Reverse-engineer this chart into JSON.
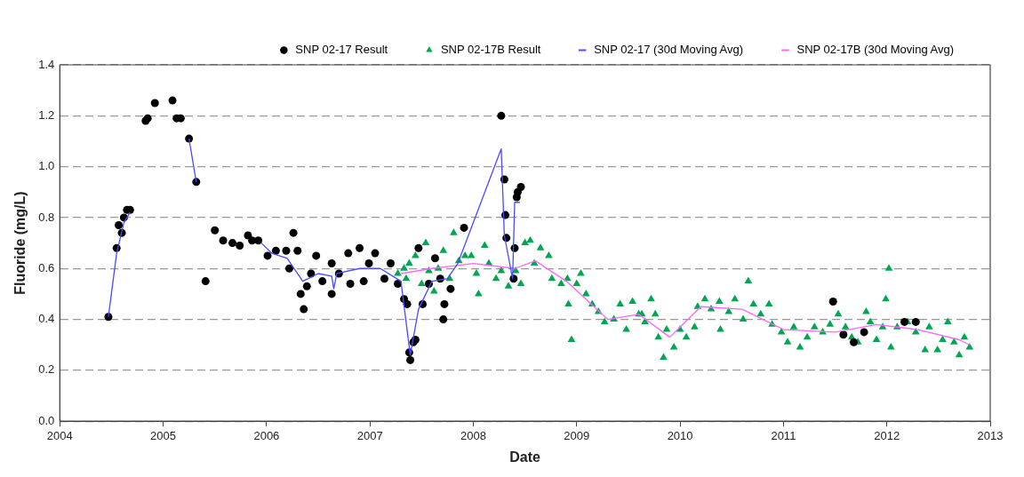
{
  "chart_data": {
    "type": "scatter",
    "xlabel": "Date",
    "ylabel": "Fluoride (mg/L)",
    "xlim": [
      2004,
      2013
    ],
    "xticks": [
      2004,
      2005,
      2006,
      2007,
      2008,
      2009,
      2010,
      2011,
      2012,
      2013
    ],
    "ylim": [
      0,
      1.4
    ],
    "yticks": [
      {
        "value": 0,
        "label": "0.0"
      },
      0.2,
      0.4,
      0.6,
      0.8,
      {
        "value": 1,
        "label": "1.0"
      },
      1.2,
      1.4
    ],
    "grid": "y",
    "legend": "top",
    "series": [
      {
        "name": "SNP 02-17 Result",
        "marker": "circle",
        "color": "#000000",
        "x": [
          2004.47,
          2004.55,
          2004.57,
          2004.6,
          2004.62,
          2004.65,
          2004.68,
          2004.83,
          2004.85,
          2004.92,
          2005.09,
          2005.13,
          2005.17,
          2005.25,
          2005.32,
          2005.41,
          2005.5,
          2005.58,
          2005.67,
          2005.74,
          2005.82,
          2005.86,
          2005.92,
          2006.01,
          2006.09,
          2006.19,
          2006.22,
          2006.26,
          2006.3,
          2006.33,
          2006.36,
          2006.39,
          2006.43,
          2006.48,
          2006.54,
          2006.63,
          2006.63,
          2006.7,
          2006.79,
          2006.81,
          2006.9,
          2006.94,
          2006.99,
          2007.05,
          2007.14,
          2007.2,
          2007.27,
          2007.33,
          2007.36,
          2007.38,
          2007.39,
          2007.42,
          2007.44,
          2007.47,
          2007.51,
          2007.57,
          2007.63,
          2007.68,
          2007.71,
          2007.72,
          2007.78,
          2007.91,
          2008.27,
          2008.3,
          2008.31,
          2008.32,
          2008.39,
          2008.4,
          2008.42,
          2008.43,
          2008.46,
          2011.48,
          2011.58,
          2011.68,
          2011.78,
          2012.17,
          2012.28
        ],
        "values": [
          0.41,
          0.68,
          0.77,
          0.74,
          0.8,
          0.83,
          0.83,
          1.18,
          1.19,
          1.25,
          1.26,
          1.19,
          1.19,
          1.11,
          0.94,
          0.55,
          0.75,
          0.71,
          0.7,
          0.69,
          0.73,
          0.71,
          0.71,
          0.65,
          0.67,
          0.67,
          0.6,
          0.74,
          0.67,
          0.5,
          0.44,
          0.53,
          0.58,
          0.65,
          0.55,
          0.62,
          0.5,
          0.58,
          0.66,
          0.54,
          0.68,
          0.55,
          0.62,
          0.66,
          0.56,
          0.62,
          0.54,
          0.48,
          0.46,
          0.27,
          0.24,
          0.31,
          0.32,
          0.68,
          0.46,
          0.54,
          0.64,
          0.56,
          0.4,
          0.46,
          0.52,
          0.76,
          1.2,
          0.95,
          0.81,
          0.72,
          0.56,
          0.68,
          0.88,
          0.9,
          0.92,
          0.47,
          0.34,
          0.31,
          0.35,
          0.39,
          0.39
        ]
      },
      {
        "name": "SNP 02-17B Result",
        "marker": "triangle",
        "color": "#00a651",
        "x": [
          2007.27,
          2007.33,
          2007.35,
          2007.38,
          2007.44,
          2007.5,
          2007.54,
          2007.57,
          2007.62,
          2007.66,
          2007.71,
          2007.77,
          2007.81,
          2007.86,
          2007.92,
          2007.98,
          2008.03,
          2008.05,
          2008.11,
          2008.15,
          2008.22,
          2008.27,
          2008.34,
          2008.41,
          2008.46,
          2008.5,
          2008.55,
          2008.59,
          2008.65,
          2008.73,
          2008.76,
          2008.85,
          2008.91,
          2008.92,
          2008.95,
          2009,
          2009.04,
          2009.09,
          2009.15,
          2009.21,
          2009.27,
          2009.36,
          2009.42,
          2009.48,
          2009.54,
          2009.6,
          2009.63,
          2009.66,
          2009.72,
          2009.76,
          2009.79,
          2009.84,
          2009.87,
          2009.94,
          2010,
          2010.06,
          2010.14,
          2010.17,
          2010.24,
          2010.3,
          2010.38,
          2010.39,
          2010.47,
          2010.53,
          2010.61,
          2010.66,
          2010.71,
          2010.78,
          2010.86,
          2010.89,
          2010.98,
          2011.04,
          2011.1,
          2011.16,
          2011.23,
          2011.3,
          2011.38,
          2011.45,
          2011.53,
          2011.6,
          2011.66,
          2011.72,
          2011.8,
          2011.84,
          2011.9,
          2011.96,
          2011.99,
          2012.02,
          2012.04,
          2012.1,
          2012.2,
          2012.28,
          2012.37,
          2012.41,
          2012.49,
          2012.54,
          2012.59,
          2012.65,
          2012.7,
          2012.75,
          2012.8
        ],
        "values": [
          0.58,
          0.6,
          0.56,
          0.62,
          0.65,
          0.54,
          0.7,
          0.59,
          0.51,
          0.6,
          0.67,
          0.56,
          0.74,
          0.63,
          0.65,
          0.65,
          0.58,
          0.5,
          0.69,
          0.62,
          0.56,
          0.59,
          0.53,
          0.59,
          0.54,
          0.7,
          0.71,
          0.62,
          0.68,
          0.65,
          0.56,
          0.54,
          0.56,
          0.46,
          0.32,
          0.54,
          0.58,
          0.5,
          0.46,
          0.43,
          0.39,
          0.4,
          0.46,
          0.36,
          0.47,
          0.42,
          0.42,
          0.39,
          0.48,
          0.42,
          0.33,
          0.25,
          0.36,
          0.29,
          0.36,
          0.33,
          0.37,
          0.45,
          0.48,
          0.44,
          0.47,
          0.36,
          0.43,
          0.48,
          0.4,
          0.55,
          0.46,
          0.42,
          0.46,
          0.38,
          0.35,
          0.31,
          0.37,
          0.29,
          0.33,
          0.37,
          0.35,
          0.38,
          0.42,
          0.37,
          0.33,
          0.31,
          0.43,
          0.39,
          0.32,
          0.37,
          0.48,
          0.6,
          0.29,
          0.37,
          0.39,
          0.35,
          0.28,
          0.37,
          0.28,
          0.32,
          0.39,
          0.31,
          0.26,
          0.33,
          0.29
        ]
      },
      {
        "name": "SNP 02-17 (30d Moving Avg)",
        "type": "line",
        "marker": "none",
        "line_style": "solid",
        "color": "#4a4aff",
        "x": [
          2004.47,
          2004.55,
          2004.62,
          2004.68,
          2004.75,
          2005.25,
          2005.32,
          2005.4,
          2005.95,
          2006.05,
          2006.2,
          2006.35,
          2006.5,
          2006.63,
          2006.65,
          2006.68,
          2006.9,
          2007.1,
          2007.3,
          2007.39,
          2007.47,
          2007.6,
          2007.75,
          2007.85,
          2008.27,
          2008.3,
          2008.38,
          2008.4,
          2008.45
        ],
        "values": [
          0.41,
          0.66,
          0.78,
          0.82,
          null,
          1.11,
          0.94,
          null,
          0.7,
          0.66,
          0.64,
          0.55,
          0.58,
          0.57,
          0.52,
          0.58,
          0.6,
          0.6,
          0.55,
          0.26,
          0.44,
          0.55,
          0.56,
          0.62,
          1.07,
          0.73,
          0.56,
          0.86,
          0.86
        ]
      },
      {
        "name": "SNP 02-17B (30d Moving Avg)",
        "type": "line",
        "marker": "none",
        "line_style": "solid",
        "color": "#ff66ff",
        "x": [
          2007.3,
          2007.6,
          2008,
          2008.4,
          2008.6,
          2008.9,
          2009.3,
          2009.6,
          2009.9,
          2010.2,
          2010.6,
          2011,
          2011.5,
          2011.9,
          2012.3,
          2012.7,
          2012.8
        ],
        "values": [
          0.58,
          0.6,
          0.62,
          0.6,
          0.63,
          0.55,
          0.4,
          0.42,
          0.33,
          0.45,
          0.44,
          0.36,
          0.35,
          0.38,
          0.36,
          0.32,
          0.3
        ]
      }
    ]
  }
}
